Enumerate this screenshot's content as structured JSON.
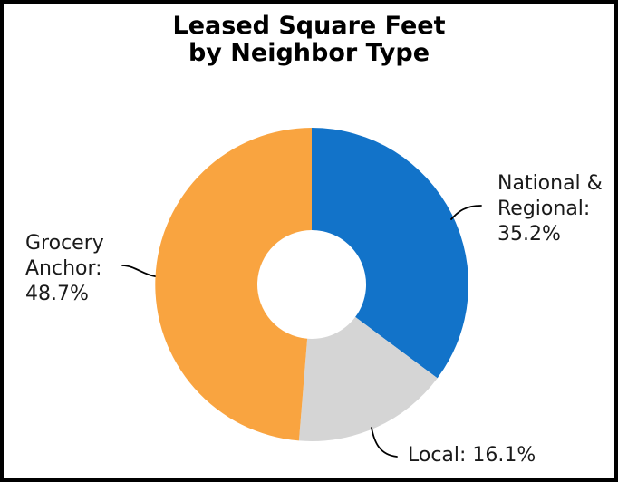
{
  "window": {
    "background_color": "#FFFFFF",
    "border_color": "#000000",
    "text_color": "#1A1A1A",
    "title_color": "#000000"
  },
  "title": {
    "line1": "Leased Square Feet",
    "line2": "by Neighbor Type"
  },
  "chart_data": {
    "type": "pie",
    "subtype": "donut",
    "title": "Leased Square Feet by Neighbor Type",
    "categories": [
      "National & Regional",
      "Local",
      "Grocery Anchor"
    ],
    "values": [
      35.2,
      16.1,
      48.7
    ],
    "unit": "%",
    "colors": [
      "#1273C9",
      "#D5D5D5",
      "#F9A440"
    ],
    "start_angle_deg": 0,
    "direction": "clockwise",
    "inner_radius_ratio": 0.347,
    "legend": "none",
    "leader_line_color": "#000000",
    "data_labels": [
      "National & Regional: 35.2%",
      "Local: 16.1%",
      "Grocery Anchor: 48.7%"
    ]
  },
  "callouts": {
    "national": {
      "lines": [
        "National &",
        "Regional:",
        "35.2%"
      ]
    },
    "grocery": {
      "lines": [
        "Grocery",
        "Anchor:",
        "48.7%"
      ]
    },
    "local": {
      "lines": [
        "Local: 16.1%"
      ]
    }
  }
}
